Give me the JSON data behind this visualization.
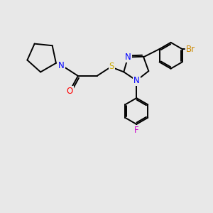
{
  "bg_color": "#e8e8e8",
  "bond_color": "#000000",
  "atom_colors": {
    "N": "#0000ff",
    "O": "#ff0000",
    "S": "#ccaa00",
    "Br": "#cc8800",
    "F": "#cc00cc"
  },
  "line_width": 1.4,
  "font_size": 8.5
}
